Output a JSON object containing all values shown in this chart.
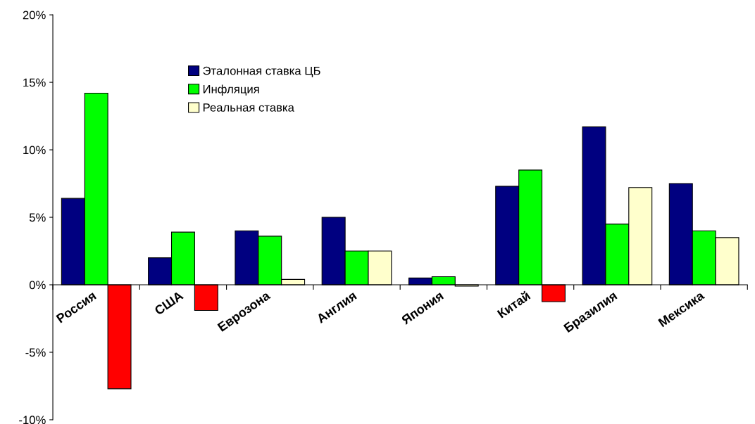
{
  "chart_data": {
    "type": "bar",
    "categories": [
      "Россия",
      "США",
      "Еврозона",
      "Англия",
      "Япония",
      "Китай",
      "Бразилия",
      "Мексика"
    ],
    "series": [
      {
        "name": "Эталонная ставка ЦБ",
        "color": "#000080",
        "values": [
          6.4,
          2.0,
          4.0,
          5.0,
          0.5,
          7.3,
          11.7,
          7.5
        ]
      },
      {
        "name": "Инфляция",
        "color": "#00ff00",
        "values": [
          14.2,
          3.9,
          3.6,
          2.5,
          0.6,
          8.5,
          4.5,
          4.0
        ]
      },
      {
        "name": "Реальная ставка",
        "color": "#ffffcc",
        "colors": [
          "#ff0000",
          "#ff0000",
          "#ffffcc",
          "#ffffcc",
          "#ffffcc",
          "#ff0000",
          "#ffffcc",
          "#ffffcc"
        ],
        "values": [
          -7.7,
          -1.9,
          0.4,
          2.5,
          -0.1,
          -1.25,
          7.2,
          3.5
        ]
      }
    ],
    "ylim": [
      -10,
      20
    ],
    "yticks": [
      {
        "value": -10,
        "label": "-10%"
      },
      {
        "value": -5,
        "label": "-5%"
      },
      {
        "value": 0,
        "label": "0%"
      },
      {
        "value": 5,
        "label": "5%"
      },
      {
        "value": 10,
        "label": "10%"
      },
      {
        "value": 15,
        "label": "15%"
      },
      {
        "value": 20,
        "label": "20%"
      }
    ],
    "grid": false,
    "legend": "top left"
  }
}
